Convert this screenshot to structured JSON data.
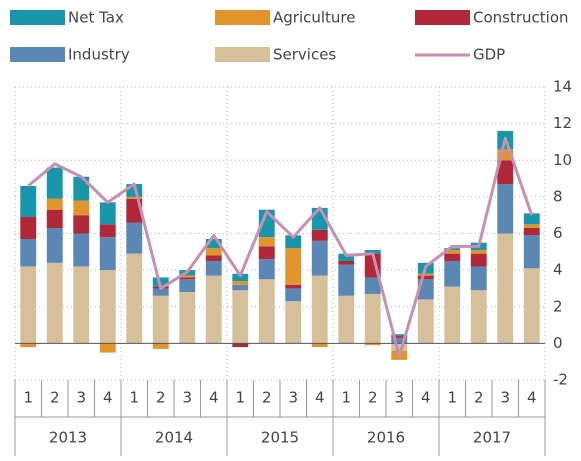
{
  "chart_data": {
    "type": "bar",
    "stacked": true,
    "categories": [
      "1",
      "2",
      "3",
      "4",
      "1",
      "2",
      "3",
      "4",
      "1",
      "2",
      "3",
      "4",
      "1",
      "2",
      "3",
      "4",
      "1",
      "2",
      "3",
      "4"
    ],
    "groups": [
      "2013",
      "2014",
      "2015",
      "2016",
      "2017"
    ],
    "series": [
      {
        "name": "Services",
        "color": "#d6c09c",
        "values": [
          4.2,
          4.4,
          4.2,
          4.0,
          4.9,
          2.6,
          2.8,
          3.7,
          2.9,
          3.5,
          2.3,
          3.7,
          2.6,
          2.7,
          -0.4,
          2.4,
          3.1,
          2.9,
          6.0,
          4.1
        ]
      },
      {
        "name": "Industry",
        "color": "#5b87b5",
        "values": [
          1.5,
          1.9,
          1.8,
          1.8,
          1.7,
          0.4,
          0.7,
          0.8,
          0.3,
          1.1,
          0.7,
          1.9,
          1.7,
          0.9,
          0.3,
          1.1,
          1.4,
          1.3,
          2.7,
          1.8
        ]
      },
      {
        "name": "Construction",
        "color": "#b0283a",
        "values": [
          1.2,
          1.0,
          1.0,
          0.7,
          1.3,
          0.1,
          0.1,
          0.3,
          -0.2,
          0.7,
          0.2,
          0.6,
          0.2,
          1.3,
          0.1,
          0.2,
          0.4,
          0.7,
          1.3,
          0.4
        ]
      },
      {
        "name": "Agriculture",
        "color": "#e1932c",
        "values": [
          -0.2,
          0.6,
          0.8,
          -0.5,
          0.1,
          -0.3,
          0.1,
          0.4,
          0.2,
          0.5,
          2.0,
          -0.2,
          0.0,
          -0.1,
          -0.5,
          0.1,
          0.2,
          0.2,
          0.6,
          0.2
        ]
      },
      {
        "name": "Net Tax",
        "color": "#1a96ab",
        "values": [
          1.7,
          1.7,
          1.3,
          1.2,
          0.7,
          0.5,
          0.3,
          0.5,
          0.4,
          1.5,
          0.7,
          1.2,
          0.4,
          0.2,
          0.1,
          0.6,
          0.1,
          0.4,
          1.0,
          0.6
        ]
      },
      {
        "name": "GDP",
        "type": "line",
        "color": "#c78fb0",
        "values": [
          8.6,
          9.8,
          9.1,
          7.7,
          8.7,
          3.0,
          3.9,
          5.9,
          3.7,
          7.2,
          5.8,
          7.4,
          4.8,
          4.9,
          -0.7,
          4.2,
          5.3,
          5.3,
          11.2,
          7.0
        ]
      }
    ],
    "ylim": [
      -2,
      14
    ],
    "yticks": [
      -2,
      0,
      2,
      4,
      6,
      8,
      10,
      12,
      14
    ],
    "grid": true
  }
}
